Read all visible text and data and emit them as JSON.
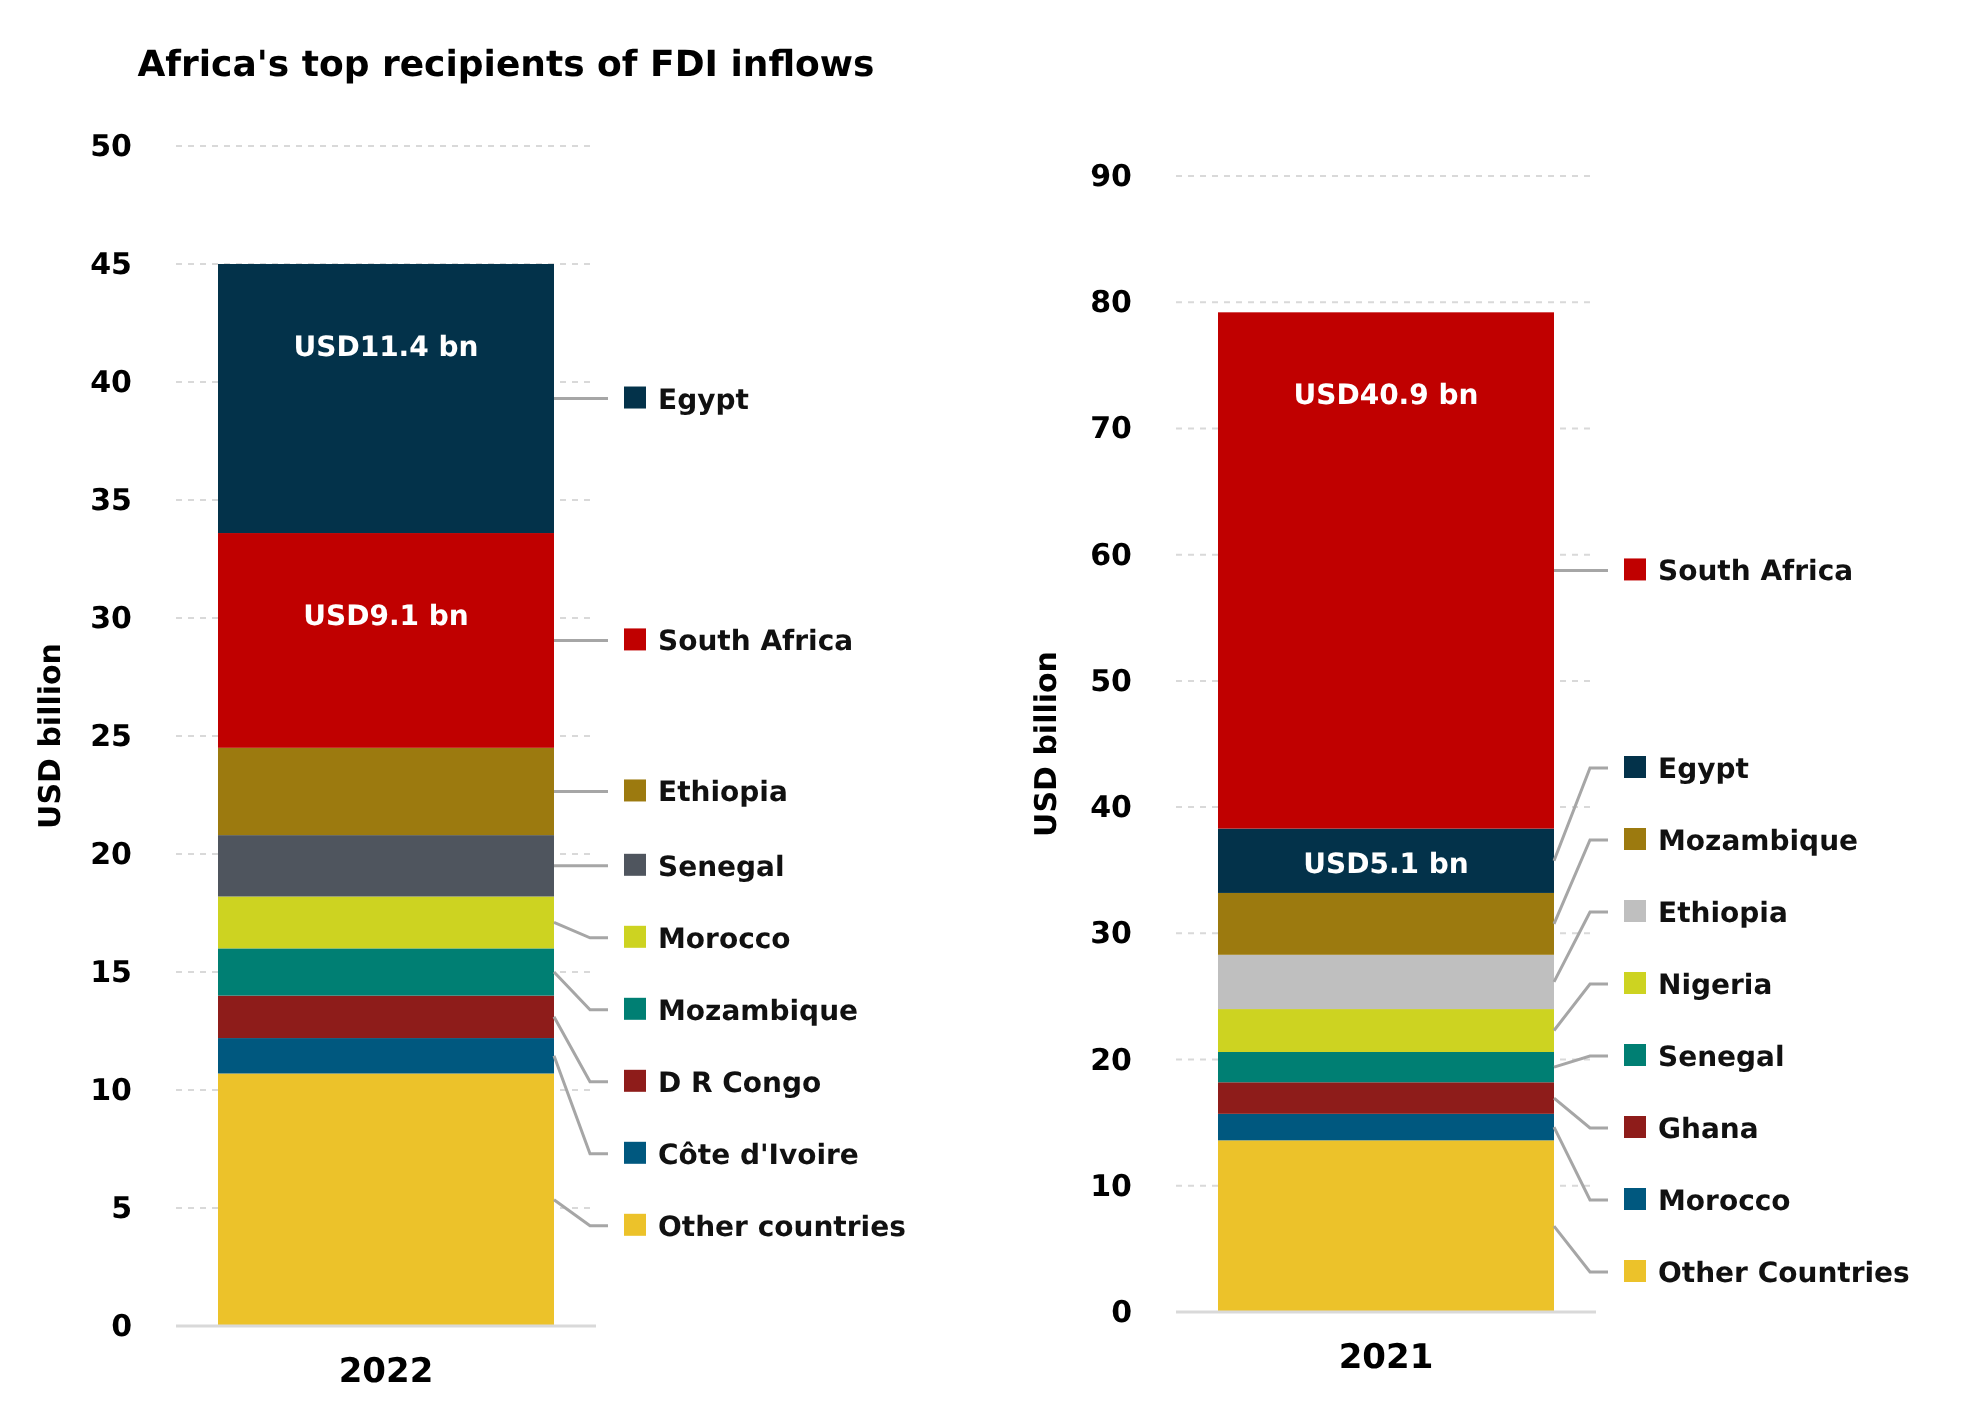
{
  "chart_data": [
    {
      "type": "bar",
      "title": "Africa's top recipients of FDI inflows",
      "ylabel": "USD billion",
      "categories": [
        "2022"
      ],
      "stacked": true,
      "ylim": [
        0,
        50
      ],
      "yticks": [
        0,
        5,
        10,
        15,
        20,
        25,
        30,
        35,
        40,
        45,
        50
      ],
      "grid": "y",
      "legend": "right",
      "series": [
        {
          "name": "Other countries",
          "color": "#ecc22a",
          "values": [
            10.7
          ]
        },
        {
          "name": "Côte d'Ivoire",
          "color": "#00587f",
          "values": [
            1.5
          ]
        },
        {
          "name": "D R Congo",
          "color": "#8e1c1a",
          "values": [
            1.8
          ]
        },
        {
          "name": "Mozambique",
          "color": "#007f73",
          "values": [
            2.0
          ]
        },
        {
          "name": "Morocco",
          "color": "#cdd321",
          "values": [
            2.2
          ]
        },
        {
          "name": "Senegal",
          "color": "#4f555e",
          "values": [
            2.6
          ]
        },
        {
          "name": "Ethiopia",
          "color": "#9c7a0f",
          "values": [
            3.7
          ]
        },
        {
          "name": "South Africa",
          "color": "#c00000",
          "values": [
            9.1
          ],
          "value_labels": [
            "USD9.1 bn"
          ]
        },
        {
          "name": "Egypt",
          "color": "#03324a",
          "values": [
            11.4
          ],
          "value_labels": [
            "USD11.4 bn"
          ]
        }
      ]
    },
    {
      "type": "bar",
      "ylabel": "USD billion",
      "categories": [
        "2021"
      ],
      "stacked": true,
      "ylim": [
        0,
        90
      ],
      "yticks": [
        0,
        10,
        20,
        30,
        40,
        50,
        60,
        70,
        80,
        90
      ],
      "grid": "y",
      "legend": "right",
      "series": [
        {
          "name": "Other Countries",
          "color": "#ecc22a",
          "values": [
            13.6
          ]
        },
        {
          "name": "Morocco",
          "color": "#00587f",
          "values": [
            2.1
          ]
        },
        {
          "name": "Ghana",
          "color": "#8e1c1a",
          "values": [
            2.5
          ]
        },
        {
          "name": "Senegal",
          "color": "#007f73",
          "values": [
            2.4
          ]
        },
        {
          "name": "Nigeria",
          "color": "#cdd321",
          "values": [
            3.4
          ]
        },
        {
          "name": "Ethiopia",
          "color": "#bfbfbf",
          "values": [
            4.3
          ]
        },
        {
          "name": "Mozambique",
          "color": "#9c7a0f",
          "values": [
            4.9
          ]
        },
        {
          "name": "Egypt",
          "color": "#03324a",
          "values": [
            5.1
          ],
          "value_labels": [
            "USD5.1 bn"
          ]
        },
        {
          "name": "South Africa",
          "color": "#c00000",
          "values": [
            40.9
          ],
          "value_labels": [
            "USD40.9 bn"
          ]
        }
      ]
    }
  ]
}
